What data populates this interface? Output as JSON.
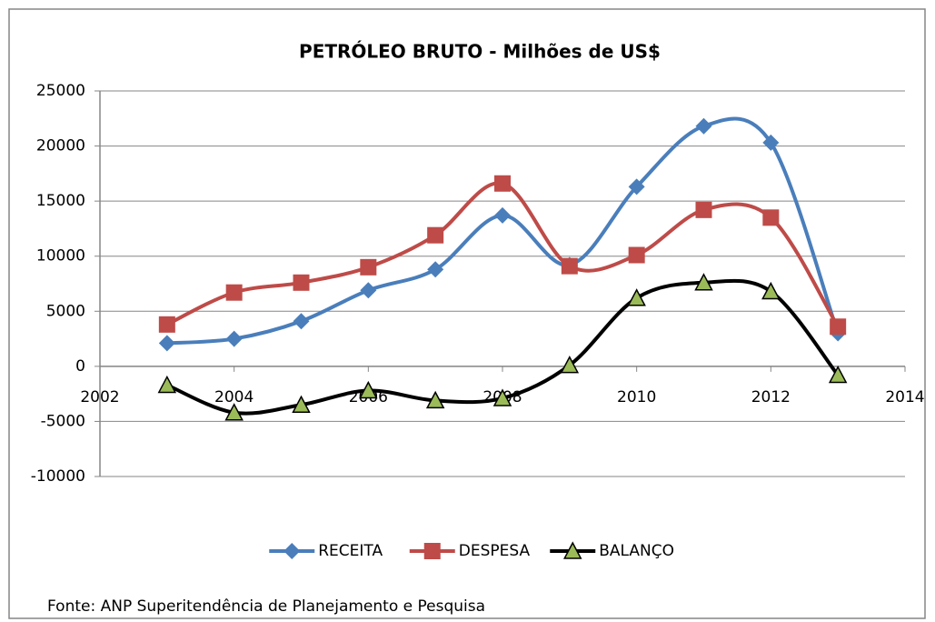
{
  "chart_data": {
    "type": "line",
    "title": "PETRÓLEO BRUTO - Milhões de US$",
    "x": [
      2003,
      2004,
      2005,
      2006,
      2007,
      2008,
      2009,
      2010,
      2011,
      2012,
      2013
    ],
    "series": [
      {
        "name": "RECEITA",
        "color": "#4a7ebb",
        "marker": "diamond",
        "values": [
          2100,
          2500,
          4100,
          6900,
          8800,
          13700,
          9200,
          16300,
          21800,
          20300,
          3000
        ]
      },
      {
        "name": "DESPESA",
        "color": "#be4b48",
        "marker": "square",
        "values": [
          3800,
          6700,
          7600,
          9000,
          11900,
          16600,
          9100,
          10100,
          14200,
          13500,
          3600
        ]
      },
      {
        "name": "BALANÇO",
        "color": "#000000",
        "marker": "triangle",
        "marker_color": "#9bbb59",
        "values": [
          -1700,
          -4200,
          -3500,
          -2200,
          -3100,
          -2900,
          100,
          6200,
          7600,
          6800,
          -800
        ]
      }
    ],
    "xlim": [
      2002,
      2014
    ],
    "xticks": [
      2002,
      2004,
      2006,
      2008,
      2010,
      2012,
      2014
    ],
    "ylim": [
      -10000,
      25000
    ],
    "yticks": [
      -10000,
      -5000,
      0,
      5000,
      10000,
      15000,
      20000,
      25000
    ],
    "grid": true,
    "smooth": true,
    "legend": "bottom",
    "source": "Fonte: ANP Superitendência de Planejamento e Pesquisa"
  }
}
